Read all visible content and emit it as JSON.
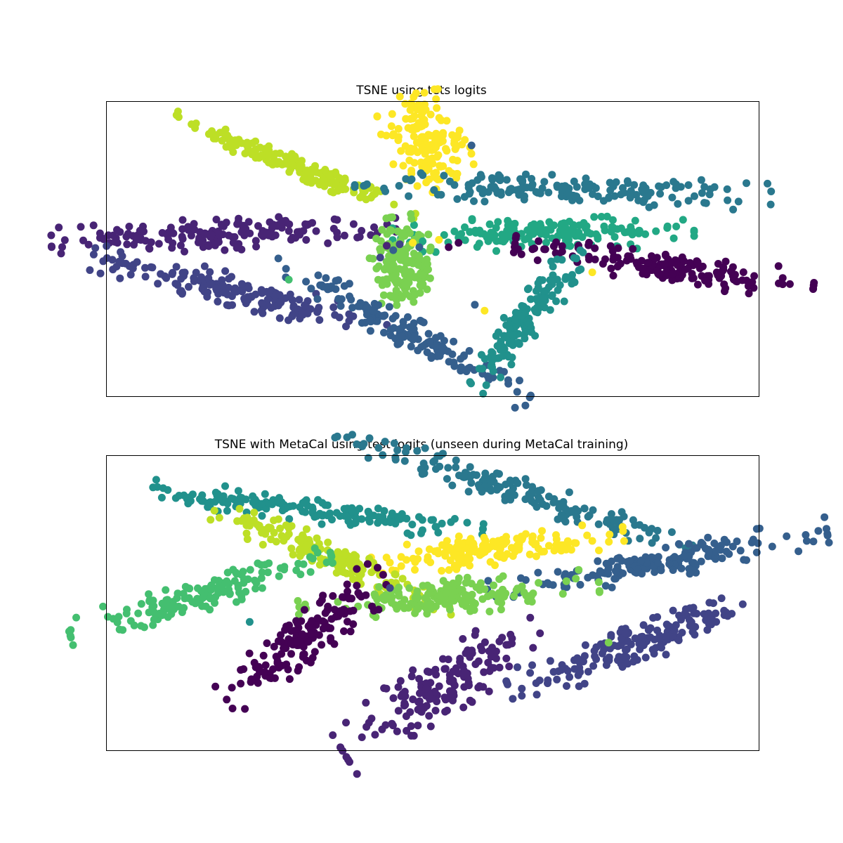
{
  "chart_data": [
    {
      "type": "scatter",
      "title": "TSNE using tets logits",
      "xlabel": "",
      "ylabel": "",
      "grid": false,
      "ticks": false,
      "xlim": [
        -100,
        100
      ],
      "ylim": [
        -100,
        100
      ],
      "colors": [
        "#440154",
        "#482475",
        "#414487",
        "#355f8d",
        "#2a788e",
        "#21918c",
        "#22a884",
        "#44bf70",
        "#7ad151",
        "#bddf26",
        "#fde725"
      ],
      "clusters": [
        {
          "color_index": 9,
          "center": [
            -42,
            56
          ],
          "spread": [
            18,
            4
          ],
          "angle": -22,
          "count": 160
        },
        {
          "color_index": 10,
          "center": [
            -2,
            72
          ],
          "spread": [
            7,
            13
          ],
          "angle": -78,
          "count": 150
        },
        {
          "color_index": 4,
          "center": [
            40,
            40
          ],
          "spread": [
            29,
            4.5
          ],
          "angle": -2,
          "count": 170
        },
        {
          "color_index": 1,
          "center": [
            -64,
            10
          ],
          "spread": [
            24,
            5
          ],
          "angle": 2,
          "count": 170
        },
        {
          "color_index": 6,
          "center": [
            34,
            10
          ],
          "spread": [
            21,
            5
          ],
          "angle": 1,
          "count": 160
        },
        {
          "color_index": 0,
          "center": [
            71,
            -12
          ],
          "spread": [
            21,
            5
          ],
          "angle": -8,
          "count": 170
        },
        {
          "color_index": 8,
          "center": [
            -9,
            -12
          ],
          "spread": [
            7,
            10
          ],
          "angle": -80,
          "count": 160
        },
        {
          "color_index": 2,
          "center": [
            -59,
            -29
          ],
          "spread": [
            21,
            5
          ],
          "angle": -14,
          "count": 170
        },
        {
          "color_index": 3,
          "center": [
            -9,
            -55
          ],
          "spread": [
            20,
            5
          ],
          "angle": -28,
          "count": 160
        },
        {
          "color_index": 5,
          "center": [
            29,
            -47
          ],
          "spread": [
            12,
            5.5
          ],
          "angle": 50,
          "count": 150
        }
      ],
      "outliers": [
        {
          "x": -6,
          "y": 4,
          "c": 10
        },
        {
          "x": -10,
          "y": 3,
          "c": 2
        },
        {
          "x": -3,
          "y": 5,
          "c": 6
        },
        {
          "x": -14,
          "y": 2,
          "c": 1
        },
        {
          "x": 2,
          "y": 6,
          "c": 10
        },
        {
          "x": -16,
          "y": -6,
          "c": 2
        },
        {
          "x": 5,
          "y": 1,
          "c": 0
        },
        {
          "x": 12,
          "y": 70,
          "c": 3
        },
        {
          "x": -44,
          "y": -21,
          "c": 7
        },
        {
          "x": 13,
          "y": -38,
          "c": 3
        },
        {
          "x": 16,
          "y": -42,
          "c": 10
        },
        {
          "x": -4,
          "y": 1,
          "c": 3
        },
        {
          "x": 8,
          "y": 4,
          "c": 0
        },
        {
          "x": 49,
          "y": -16,
          "c": 10
        },
        {
          "x": -12,
          "y": -1,
          "c": 3
        }
      ]
    },
    {
      "type": "scatter",
      "title": "TSNE with MetaCal using test logits (unseen during MetaCal training)",
      "xlabel": "",
      "ylabel": "",
      "grid": false,
      "ticks": false,
      "xlim": [
        -100,
        100
      ],
      "ylim": [
        -100,
        100
      ],
      "colors": [
        "#440154",
        "#482475",
        "#414487",
        "#355f8d",
        "#2a788e",
        "#21918c",
        "#22a884",
        "#44bf70",
        "#7ad151",
        "#bddf26",
        "#fde725"
      ],
      "clusters": [
        {
          "color_index": 4,
          "center": [
            25,
            76
          ],
          "spread": [
            26,
            4.5
          ],
          "angle": -17,
          "count": 170
        },
        {
          "color_index": 5,
          "center": [
            -37,
            63
          ],
          "spread": [
            24,
            4
          ],
          "angle": -7,
          "count": 170
        },
        {
          "color_index": 10,
          "center": [
            17,
            36
          ],
          "spread": [
            19,
            5
          ],
          "angle": 6,
          "count": 160
        },
        {
          "color_index": 9,
          "center": [
            -30,
            30
          ],
          "spread": [
            18,
            5
          ],
          "angle": -23,
          "count": 160
        },
        {
          "color_index": 3,
          "center": [
            69,
            27
          ],
          "spread": [
            24,
            5
          ],
          "angle": 10,
          "count": 170
        },
        {
          "color_index": 7,
          "center": [
            -71,
            5
          ],
          "spread": [
            19,
            5
          ],
          "angle": 16,
          "count": 160
        },
        {
          "color_index": 8,
          "center": [
            5,
            4
          ],
          "spread": [
            21,
            5.5
          ],
          "angle": 4,
          "count": 160
        },
        {
          "color_index": 0,
          "center": [
            -39,
            -24
          ],
          "spread": [
            14,
            7
          ],
          "angle": 38,
          "count": 160
        },
        {
          "color_index": 2,
          "center": [
            63,
            -28
          ],
          "spread": [
            19,
            6
          ],
          "angle": 20,
          "count": 170
        },
        {
          "color_index": 1,
          "center": [
            2,
            -58
          ],
          "spread": [
            16,
            9
          ],
          "angle": 32,
          "count": 160
        }
      ],
      "outliers": [
        {
          "x": -56,
          "y": -13,
          "c": 5
        },
        {
          "x": 54,
          "y": -27,
          "c": 8
        },
        {
          "x": -13,
          "y": 10,
          "c": 2
        }
      ]
    }
  ]
}
